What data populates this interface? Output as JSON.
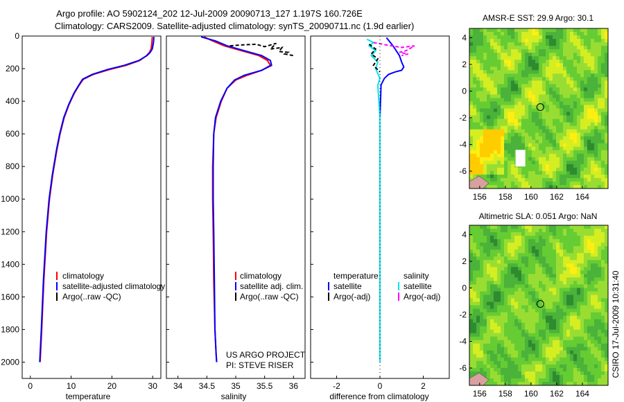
{
  "header": {
    "title_line1": "Argo profile: AO 5902124_202 12-Jul-2009 20090713_127 1.197S 160.726E",
    "title_line2": "Climatology: CARS2009. Satellite-adjusted climatology: synTS_20090711.nc (1.9d earlier)"
  },
  "colors": {
    "climatology": "#ff0000",
    "satellite": "#0000ff",
    "argo": "#000000",
    "sat_salinity": "#00e5ee",
    "argo_salinity": "#ff00ff",
    "land": "#d9a0a0"
  },
  "chart_data": [
    {
      "id": "temperature",
      "type": "line",
      "xlabel": "temperature",
      "ylabel": "",
      "xlim": [
        -2,
        32
      ],
      "ylim": [
        2100,
        0
      ],
      "xticks": [
        0,
        10,
        20,
        30
      ],
      "yticks": [
        0,
        200,
        400,
        600,
        800,
        1000,
        1200,
        1400,
        1600,
        1800,
        2000
      ],
      "legend": [
        "climatology",
        "satellite-adjusted climatology",
        "Argo(..raw -QC)"
      ],
      "series": [
        {
          "name": "climatology",
          "color": "#ff0000",
          "x": [
            29.9,
            29.8,
            29.6,
            29.2,
            28.5,
            26.8,
            23.5,
            19.5,
            15.5,
            13.0,
            12.0,
            10.8,
            9.5,
            8.3,
            7.3,
            6.5,
            5.5,
            4.7,
            4.0,
            3.3,
            2.8,
            2.4
          ],
          "y": [
            5,
            40,
            80,
            100,
            120,
            150,
            180,
            205,
            235,
            265,
            300,
            350,
            420,
            500,
            600,
            700,
            850,
            1000,
            1200,
            1500,
            1800,
            2000
          ]
        },
        {
          "name": "satellite-adjusted climatology",
          "color": "#0000ff",
          "x": [
            30.3,
            30.2,
            29.9,
            29.4,
            28.6,
            26.6,
            23.0,
            19.0,
            15.2,
            12.8,
            11.9,
            10.7,
            9.4,
            8.2,
            7.2,
            6.4,
            5.4,
            4.6,
            3.9,
            3.2,
            2.7,
            2.3
          ],
          "y": [
            5,
            40,
            80,
            100,
            120,
            150,
            180,
            205,
            235,
            265,
            300,
            350,
            420,
            500,
            600,
            700,
            850,
            1000,
            1200,
            1500,
            1800,
            2000
          ]
        }
      ],
      "annotations": []
    },
    {
      "id": "salinity",
      "type": "line",
      "xlabel": "salinity",
      "ylabel": "",
      "xlim": [
        33.8,
        36.2
      ],
      "ylim": [
        2100,
        0
      ],
      "xticks": [
        34,
        34.5,
        35,
        35.5,
        36
      ],
      "yticks": [
        0,
        200,
        400,
        600,
        800,
        1000,
        1200,
        1400,
        1600,
        1800,
        2000
      ],
      "legend": [
        "climatology",
        "satellite adj. clim.",
        "Argo(..raw -QC)"
      ],
      "series": [
        {
          "name": "climatology",
          "color": "#ff0000",
          "x": [
            34.45,
            34.6,
            34.8,
            35.1,
            35.4,
            35.55,
            35.6,
            35.45,
            35.2,
            35.0,
            34.85,
            34.75,
            34.66,
            34.62,
            34.6,
            34.6,
            34.61,
            34.62,
            34.64,
            34.66,
            34.67
          ],
          "y": [
            5,
            30,
            60,
            90,
            120,
            150,
            180,
            210,
            240,
            270,
            320,
            400,
            500,
            600,
            800,
            1000,
            1200,
            1500,
            1800,
            1950,
            2000
          ]
        },
        {
          "name": "satellite adj. clim.",
          "color": "#0000ff",
          "x": [
            34.4,
            34.65,
            34.85,
            35.15,
            35.45,
            35.6,
            35.62,
            35.45,
            35.15,
            34.98,
            34.85,
            34.74,
            34.65,
            34.62,
            34.61,
            34.61,
            34.62,
            34.63,
            34.64,
            34.66,
            34.67
          ],
          "y": [
            5,
            30,
            60,
            90,
            120,
            150,
            180,
            210,
            240,
            270,
            320,
            400,
            500,
            600,
            800,
            1000,
            1200,
            1500,
            1800,
            1950,
            2000
          ]
        },
        {
          "name": "Argo(..raw -QC)",
          "color": "#000000",
          "dashed": true,
          "x": [
            34.9,
            35.1,
            35.35,
            35.5,
            35.7,
            35.6,
            35.8,
            35.75,
            35.9,
            35.85,
            36.0
          ],
          "y": [
            60,
            55,
            50,
            65,
            45,
            80,
            70,
            95,
            100,
            110,
            120
          ]
        }
      ],
      "annotations": [
        "US ARGO PROJECT",
        "PI: STEVE RISER"
      ]
    },
    {
      "id": "difference",
      "type": "line",
      "xlabel": "difference from climatology",
      "ylabel": "",
      "xlim": [
        -3.2,
        3.2
      ],
      "ylim": [
        2100,
        0
      ],
      "xticks": [
        -2,
        0,
        2
      ],
      "yticks": [
        0,
        200,
        400,
        600,
        800,
        1000,
        1200,
        1400,
        1600,
        1800,
        2000
      ],
      "legend": [
        "temperature",
        "satellite",
        "Argo(-adj)",
        "salinity",
        "satellite",
        "Argo(-adj)"
      ],
      "series": [
        {
          "name": "temperature satellite",
          "color": "#0000ff",
          "x": [
            0.3,
            0.6,
            0.9,
            1.0,
            1.1,
            1.0,
            0.7,
            0.4,
            0.2,
            0.05,
            0.0,
            0.0,
            0.0,
            0.0,
            0.0
          ],
          "y": [
            10,
            60,
            120,
            160,
            190,
            210,
            220,
            235,
            260,
            300,
            500,
            1000,
            1500,
            1900,
            2000
          ]
        },
        {
          "name": "salinity satellite",
          "color": "#00e5ee",
          "x": [
            -0.6,
            -0.3,
            -0.5,
            -0.2,
            -0.4,
            -0.1,
            -0.2,
            0.0,
            -0.1,
            0.0,
            0.0,
            0.0,
            0.0
          ],
          "y": [
            20,
            40,
            60,
            90,
            120,
            160,
            200,
            260,
            300,
            500,
            1000,
            1500,
            2000
          ]
        },
        {
          "name": "temperature Argo(-adj)",
          "color": "#000000",
          "dashed": true,
          "x": [
            -0.5,
            -0.2,
            -0.4,
            -0.1,
            -0.3,
            0.0
          ],
          "y": [
            50,
            80,
            110,
            140,
            180,
            220
          ]
        },
        {
          "name": "salinity Argo(-adj)",
          "color": "#ff00ff",
          "dashed": true,
          "x": [
            -0.3,
            0.3,
            1.0,
            1.6,
            1.2,
            0.9,
            1.3,
            1.0
          ],
          "y": [
            40,
            55,
            70,
            60,
            90,
            100,
            110,
            120
          ]
        }
      ],
      "annotations": []
    },
    {
      "id": "amsre-sst",
      "type": "heatmap",
      "title": "AMSR-E SST: 29.9 Argo: 30.1",
      "xlim": [
        155.2,
        166
      ],
      "ylim": [
        -7.3,
        4.7
      ],
      "xticks": [
        156,
        158,
        160,
        162,
        164
      ],
      "yticks": [
        -6,
        -4,
        -2,
        0,
        2,
        4
      ],
      "marker": {
        "lon": 160.726,
        "lat": -1.197
      },
      "colormap": [
        "#2e8b2e",
        "#4bb23a",
        "#66cc33",
        "#99dd33",
        "#d4ee22",
        "#ffee11",
        "#ffcc00"
      ]
    },
    {
      "id": "altimetric-sla",
      "type": "heatmap",
      "title": "Altimetric SLA: 0.051 Argo: NaN",
      "xlim": [
        155.2,
        166
      ],
      "ylim": [
        -7.3,
        4.7
      ],
      "xticks": [
        156,
        158,
        160,
        162,
        164
      ],
      "yticks": [
        -6,
        -4,
        -2,
        0,
        2,
        4
      ],
      "marker": {
        "lon": 160.726,
        "lat": -1.197
      },
      "colormap": [
        "#2e8b2e",
        "#4bb23a",
        "#66cc33",
        "#99dd33",
        "#d4ee22",
        "#ffee11"
      ]
    }
  ],
  "footer": {
    "stamp": "CSIRO 17-Jul-2009 10:31:40"
  }
}
